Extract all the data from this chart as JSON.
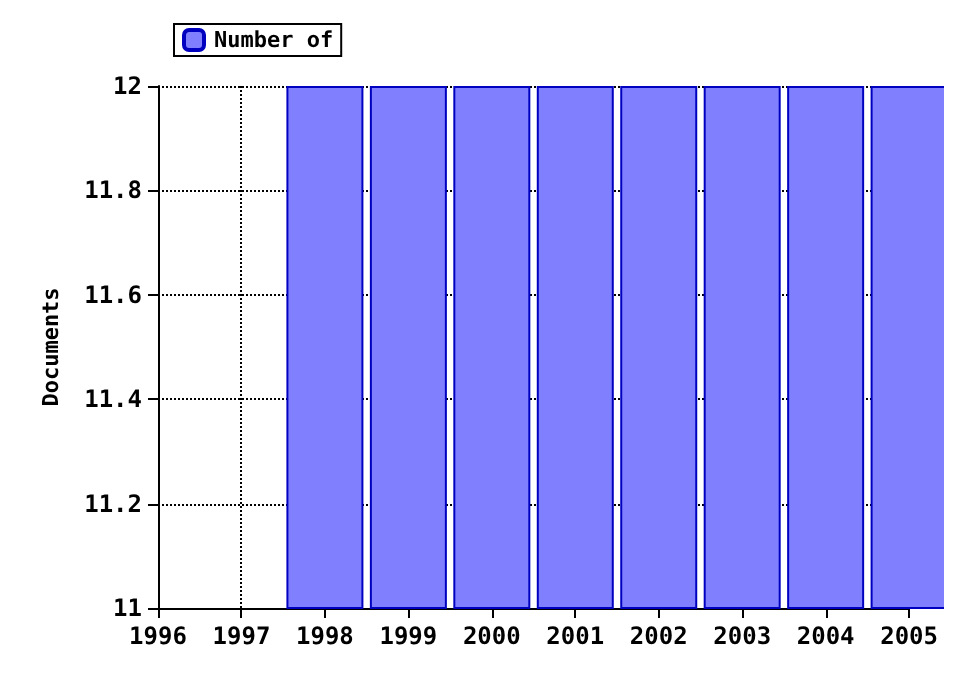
{
  "chart_data": {
    "type": "bar",
    "ylabel": "Documents",
    "x": [
      1998,
      1999,
      2000,
      2001,
      2002,
      2003,
      2004,
      2005
    ],
    "series": [
      {
        "name": "Number of",
        "color": "#8080ff",
        "values": [
          12,
          12,
          12,
          12,
          12,
          12,
          12,
          12
        ]
      }
    ],
    "xlim": [
      1996,
      2005
    ],
    "xticks": [
      1996,
      1997,
      1998,
      1999,
      2000,
      2001,
      2002,
      2003,
      2004,
      2005
    ],
    "ylim": [
      11,
      12
    ],
    "yticks": [
      11,
      11.2,
      11.4,
      11.6,
      11.8,
      12
    ],
    "grid": true,
    "legend": "top left"
  }
}
